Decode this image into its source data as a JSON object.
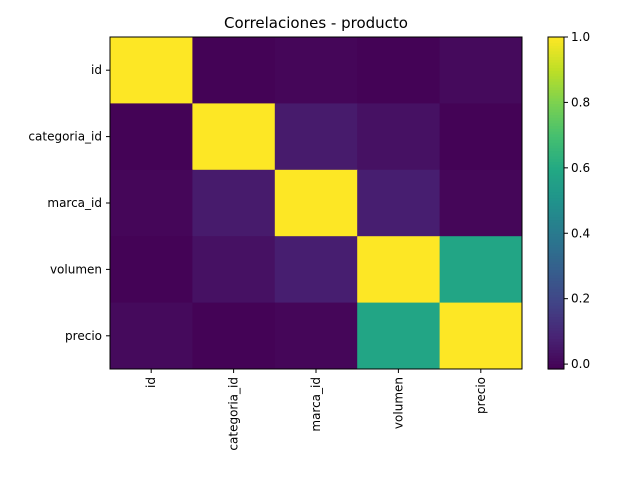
{
  "chart_data": {
    "type": "heatmap",
    "title": "Correlaciones - producto",
    "xlabel": "",
    "ylabel": "",
    "row_labels": [
      "id",
      "categoria_id",
      "marca_id",
      "volumen",
      "precio"
    ],
    "col_labels": [
      "id",
      "categoria_id",
      "marca_id",
      "volumen",
      "precio"
    ],
    "values": [
      [
        1.0,
        -0.01,
        0.0,
        -0.01,
        0.01
      ],
      [
        -0.01,
        1.0,
        0.06,
        0.03,
        -0.01
      ],
      [
        0.0,
        0.06,
        1.0,
        0.07,
        0.0
      ],
      [
        -0.01,
        0.03,
        0.07,
        1.0,
        0.58
      ],
      [
        0.01,
        -0.01,
        0.0,
        0.58,
        1.0
      ]
    ],
    "colormap": "viridis",
    "vmin": -0.015,
    "vmax": 1.0,
    "colorbar": {
      "ticks": [
        0.0,
        0.2,
        0.4,
        0.6,
        0.8,
        1.0
      ],
      "tick_labels": [
        "0.0",
        "0.2",
        "0.4",
        "0.6",
        "0.8",
        "1.0"
      ]
    },
    "grid": false,
    "legend": "none"
  }
}
